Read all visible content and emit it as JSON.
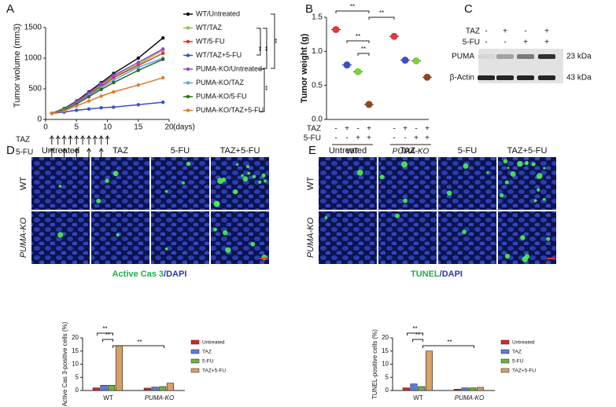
{
  "panel_labels": [
    "A",
    "B",
    "C",
    "D",
    "E"
  ],
  "chart_data": [
    {
      "type": "line",
      "ylabel": "Tumor wolume (mm3)",
      "xlabel": "(days)",
      "x": [
        1,
        3,
        5,
        7,
        9,
        11,
        15,
        19
      ],
      "xlim": [
        0,
        20
      ],
      "xticks": [
        0,
        5,
        10,
        15,
        20
      ],
      "ylim": [
        0,
        1500
      ],
      "yticks": [
        0,
        500,
        1000,
        1500
      ],
      "series": [
        {
          "name": "WT/Untreated",
          "color": "#111111",
          "values": [
            100,
            180,
            300,
            450,
            600,
            750,
            1000,
            1330
          ]
        },
        {
          "name": "WT/TAZ",
          "color": "#7ccf3a",
          "values": [
            100,
            170,
            280,
            420,
            560,
            700,
            900,
            1130
          ]
        },
        {
          "name": "WT/5-FU",
          "color": "#e0302a",
          "values": [
            100,
            170,
            270,
            400,
            540,
            680,
            880,
            1080
          ]
        },
        {
          "name": "WT/TAZ+5-FU",
          "color": "#3a4fc8",
          "values": [
            100,
            120,
            150,
            170,
            190,
            200,
            240,
            280
          ]
        },
        {
          "name": "PUMA-KO/Untreated",
          "color": "#a040d0",
          "values": [
            100,
            170,
            290,
            430,
            580,
            720,
            930,
            1150
          ]
        },
        {
          "name": "PUMA-KO/TAZ",
          "color": "#5aa8e8",
          "values": [
            100,
            170,
            260,
            390,
            520,
            640,
            850,
            1000
          ]
        },
        {
          "name": "PUMA-KO/5-FU",
          "color": "#2d6a1e",
          "values": [
            100,
            160,
            250,
            370,
            490,
            600,
            800,
            980
          ]
        },
        {
          "name": "PUMA-KO/TAZ+5-FU",
          "color": "#e0782a",
          "values": [
            100,
            140,
            220,
            300,
            380,
            450,
            560,
            680
          ]
        }
      ],
      "schedule": [
        {
          "name": "TAZ",
          "days": [
            1,
            2,
            3,
            4,
            5,
            6,
            7,
            8,
            9,
            10
          ]
        },
        {
          "name": "5-FU",
          "days": [
            1,
            3,
            5,
            7,
            9
          ]
        }
      ],
      "significance": "**"
    },
    {
      "type": "dot",
      "ylabel": "Tumor weight (g)",
      "values": [
        1.32,
        0.8,
        0.7,
        0.22,
        1.22,
        0.87,
        0.86,
        0.62
      ],
      "colors": [
        "#e03a3a",
        "#3a4fc8",
        "#7ccf3a",
        "#8a4a1e",
        "#e03a3a",
        "#3a4fc8",
        "#7ccf3a",
        "#8a4a1e"
      ],
      "ylim": [
        0,
        1.5
      ],
      "yticks": [
        {
          "value": 0,
          "label": "0.0"
        },
        {
          "value": 0.5,
          "label": "0.5"
        },
        {
          "value": 1,
          "label": "1.0"
        },
        {
          "value": 1.5,
          "label": "1.5"
        }
      ],
      "conditions": [
        {
          "name": "TAZ",
          "signs": [
            "-",
            "+",
            "-",
            "+",
            "-",
            "+",
            "-",
            "+"
          ]
        },
        {
          "name": "5-FU",
          "signs": [
            "-",
            "-",
            "+",
            "+",
            "-",
            "-",
            "+",
            "+"
          ]
        }
      ],
      "groups": [
        "WT",
        "PUMA-KO"
      ],
      "significance": "**"
    },
    {
      "type": "bar",
      "ylabel": "Active Cas 3-positive cells (%)",
      "categories": [
        "WT",
        "PUMA-KO"
      ],
      "ylim": [
        0,
        20
      ],
      "yticks": [
        0,
        5,
        10,
        15,
        20
      ],
      "series": [
        {
          "name": "Untreated",
          "color": "#d62728",
          "values": [
            1,
            0.9
          ]
        },
        {
          "name": "TAZ",
          "color": "#5b7bd6",
          "values": [
            2,
            1.3
          ]
        },
        {
          "name": "5-FU",
          "color": "#6db33f",
          "values": [
            2,
            1.5
          ]
        },
        {
          "name": "TAZ+5-FU",
          "color": "#d9a066",
          "values": [
            17,
            2.8
          ]
        }
      ],
      "significance": "**"
    },
    {
      "type": "bar",
      "ylabel": "TUNEL-positive cells (%)",
      "categories": [
        "WT",
        "PUMA-KO"
      ],
      "ylim": [
        0,
        20
      ],
      "yticks": [
        0,
        5,
        10,
        15,
        20
      ],
      "series": [
        {
          "name": "Untreated",
          "color": "#d62728",
          "values": [
            1,
            0.5
          ]
        },
        {
          "name": "TAZ",
          "color": "#5b7bd6",
          "values": [
            2.5,
            1
          ]
        },
        {
          "name": "5-FU",
          "color": "#6db33f",
          "values": [
            1.5,
            1
          ]
        },
        {
          "name": "TAZ+5-FU",
          "color": "#d9a066",
          "values": [
            15,
            1.2
          ]
        }
      ],
      "significance": "**"
    }
  ],
  "blot": {
    "conditions": [
      {
        "name": "TAZ",
        "signs": [
          "-",
          "+",
          "-",
          "+"
        ]
      },
      {
        "name": "5-FU",
        "signs": [
          "-",
          "-",
          "+",
          "+"
        ]
      }
    ],
    "bands": [
      {
        "name": "PUMA",
        "size": "23 kDa"
      },
      {
        "name": "β-Actin",
        "size": "43 kDa"
      }
    ]
  },
  "microscopy": [
    {
      "columns": [
        "Untreated",
        "TAZ",
        "5-FU",
        "TAZ+5-FU"
      ],
      "rows": [
        "WT",
        "PUMA-KO"
      ],
      "stain": "Active Cas 3",
      "counterstain": "/DAPI"
    },
    {
      "columns": [
        "Untreated",
        "TAZ",
        "5-FU",
        "TAZ+5-FU"
      ],
      "rows": [
        "WT",
        "PUMA-KO"
      ],
      "stain": "TUNEL",
      "counterstain": "/DAPI"
    }
  ]
}
